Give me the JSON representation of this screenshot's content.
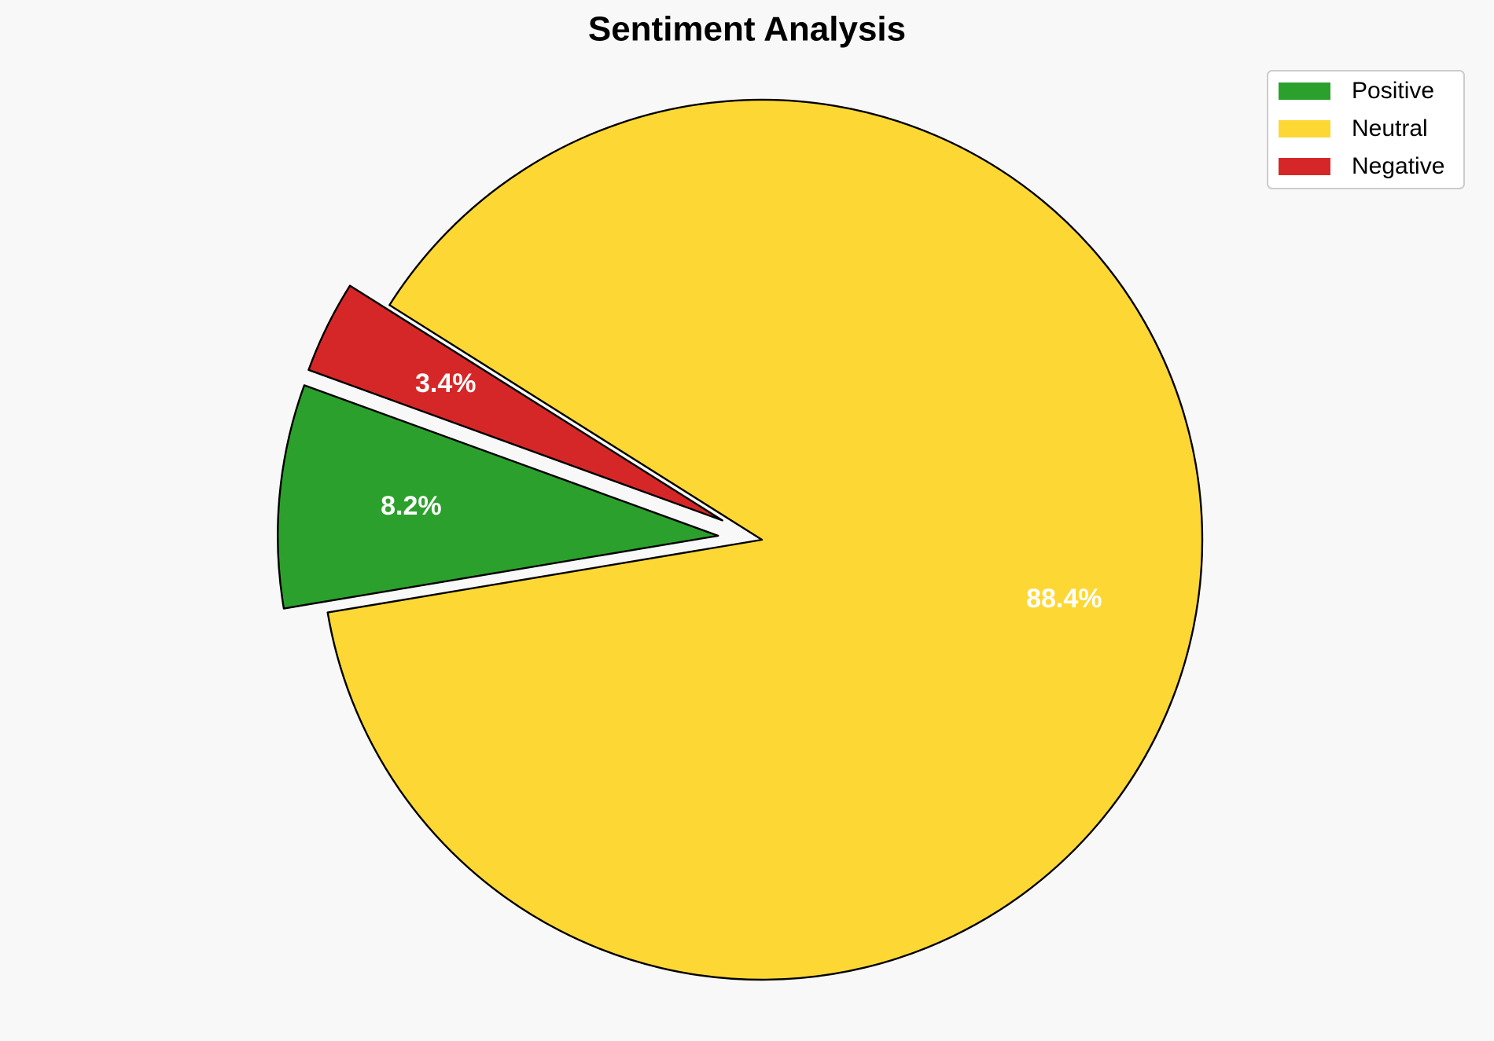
{
  "chart_data": {
    "type": "pie",
    "title": "Sentiment Analysis",
    "categories": [
      "Positive",
      "Neutral",
      "Negative"
    ],
    "values": [
      8.2,
      88.4,
      3.4
    ],
    "value_labels": [
      "8.2%",
      "88.4%",
      "3.4%"
    ],
    "colors": [
      "#2ca02c",
      "#fdd835",
      "#d62728"
    ],
    "explode": [
      0.1,
      0,
      0.1
    ],
    "startangle": 160,
    "legend": "upper right"
  }
}
